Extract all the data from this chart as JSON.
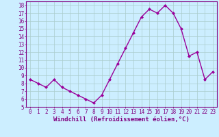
{
  "x": [
    0,
    1,
    2,
    3,
    4,
    5,
    6,
    7,
    8,
    9,
    10,
    11,
    12,
    13,
    14,
    15,
    16,
    17,
    18,
    19,
    20,
    21,
    22,
    23
  ],
  "y": [
    8.5,
    8.0,
    7.5,
    8.5,
    7.5,
    7.0,
    6.5,
    6.0,
    5.5,
    6.5,
    8.5,
    10.5,
    12.5,
    14.5,
    16.5,
    17.5,
    17.0,
    18.0,
    17.0,
    15.0,
    11.5,
    12.0,
    8.5,
    9.5
  ],
  "line_color": "#990099",
  "marker": "D",
  "marker_size": 2.0,
  "background_color": "#cceeff",
  "grid_color": "#aacccc",
  "xlabel": "Windchill (Refroidissement éolien,°C)",
  "ylim": [
    5,
    18.5
  ],
  "xlim": [
    -0.5,
    23.5
  ],
  "yticks": [
    5,
    6,
    7,
    8,
    9,
    10,
    11,
    12,
    13,
    14,
    15,
    16,
    17,
    18
  ],
  "xticks": [
    0,
    1,
    2,
    3,
    4,
    5,
    6,
    7,
    8,
    9,
    10,
    11,
    12,
    13,
    14,
    15,
    16,
    17,
    18,
    19,
    20,
    21,
    22,
    23
  ],
  "tick_fontsize": 5.5,
  "xlabel_fontsize": 6.5,
  "line_width": 1.0,
  "spine_color": "#800080",
  "label_color": "#800080"
}
